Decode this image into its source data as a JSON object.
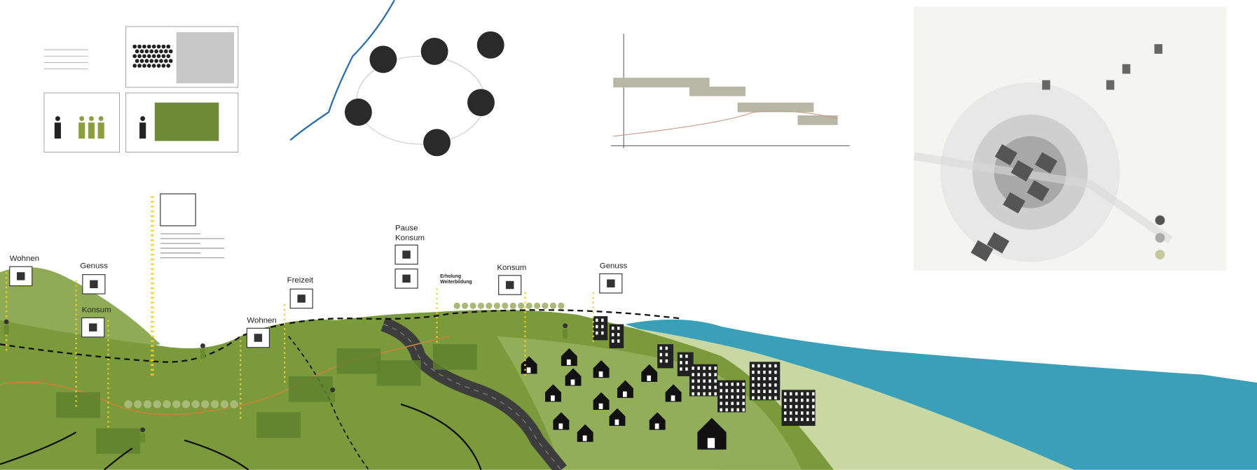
{
  "labels": [
    {
      "text": "Wohnen"
    },
    {
      "text": "Genuss"
    },
    {
      "text": "Konsum"
    },
    {
      "text": "Freizeit"
    },
    {
      "text": "Wohnen"
    },
    {
      "text": "Pause"
    },
    {
      "text": "Konsum"
    },
    {
      "text": "Erholung"
    },
    {
      "text": "Weiterbildung"
    },
    {
      "text": "Konsum"
    },
    {
      "text": "Genuss"
    }
  ]
}
